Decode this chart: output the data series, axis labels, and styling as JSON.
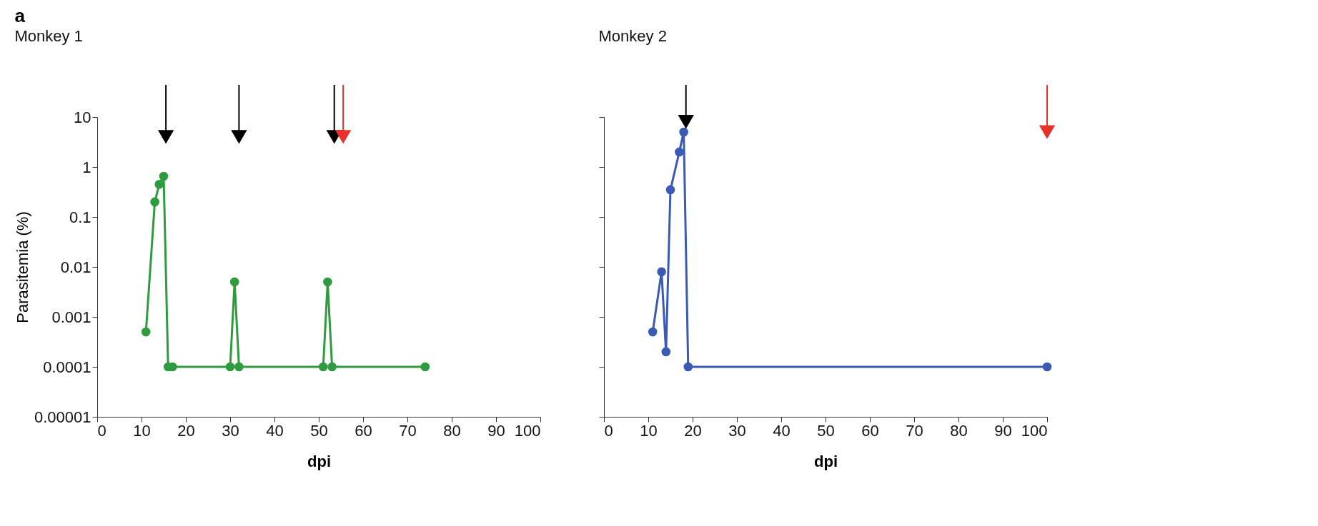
{
  "chart_data": [
    {
      "type": "line",
      "title": "Monkey 1",
      "xlabel": "dpi",
      "ylabel": "Parasitemia (%)",
      "log": true,
      "grid": false,
      "legend": false,
      "marker": "circle",
      "line_style": "solid",
      "annotations": [
        "a"
      ],
      "series": [
        {
          "color": "#2e9b3e",
          "x": [
            11,
            13,
            14,
            15,
            16,
            17,
            30,
            31,
            32,
            51,
            52,
            53,
            74
          ],
          "values": [
            0.0005,
            0.2,
            0.45,
            0.65,
            0.0001,
            0.0001,
            0.0001,
            0.005,
            0.0001,
            0.0001,
            0.005,
            0.0001,
            0.0001
          ]
        },
        {
          "type": "scatter",
          "marker": "triangle",
          "color": "#000000",
          "x": [
            15.5,
            32,
            53.5
          ],
          "values": [
            4,
            4,
            4
          ]
        },
        {
          "type": "scatter",
          "marker": "triangle",
          "color": "#e8312a",
          "x": [
            55.5
          ],
          "values": [
            4
          ]
        }
      ],
      "xlim": [
        0,
        100
      ],
      "xticks": [
        0,
        10,
        20,
        30,
        40,
        50,
        60,
        70,
        80,
        90,
        100
      ],
      "ylim": [
        1e-05,
        10
      ],
      "yticks": [
        {
          "value": 1e-05,
          "label": "0.00001"
        },
        {
          "value": 0.0001,
          "label": "0.0001"
        },
        {
          "value": 0.001,
          "label": "0.001"
        },
        {
          "value": 0.01,
          "label": "0.01"
        },
        {
          "value": 0.1,
          "label": "0.1"
        },
        {
          "value": 1,
          "label": "1"
        },
        {
          "value": 10,
          "label": "10"
        }
      ]
    },
    {
      "type": "line",
      "title": "Monkey 2",
      "xlabel": "dpi",
      "log": true,
      "grid": false,
      "legend": false,
      "marker": "circle",
      "line_style": "solid",
      "tick_labels": "x",
      "series": [
        {
          "color": "#3a5bb5",
          "x": [
            11,
            13,
            14,
            15,
            17,
            18,
            19,
            100
          ],
          "values": [
            0.0005,
            0.008,
            0.0002,
            0.35,
            2,
            5,
            0.0001,
            0.0001
          ]
        },
        {
          "type": "scatter",
          "marker": "triangle",
          "color": "#000000",
          "x": [
            18.5
          ],
          "values": [
            8
          ]
        },
        {
          "type": "scatter",
          "marker": "triangle",
          "color": "#e8312a",
          "x": [
            100
          ],
          "values": [
            5
          ]
        }
      ],
      "xlim": [
        0,
        100
      ],
      "xticks": [
        0,
        10,
        20,
        30,
        40,
        50,
        60,
        70,
        80,
        90,
        100
      ],
      "ylim": [
        1e-05,
        10
      ],
      "yticks": [
        1e-05,
        0.0001,
        0.001,
        0.01,
        0.1,
        1,
        10
      ]
    }
  ]
}
